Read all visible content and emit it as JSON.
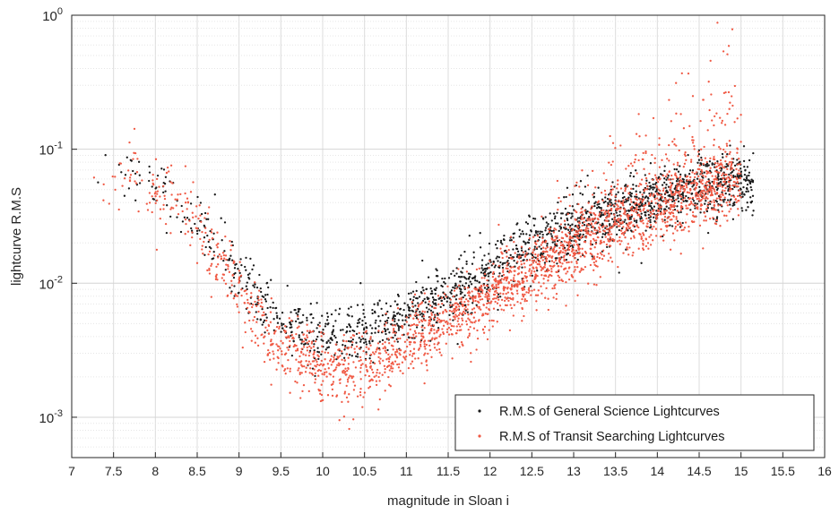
{
  "chart_data": {
    "type": "scatter",
    "title": "",
    "xlabel": "magnitude in Sloan i",
    "ylabel": "lightcurve R.M.S",
    "xlim": [
      7,
      16
    ],
    "ylim": [
      0.0005,
      1
    ],
    "yscale": "log",
    "grid": true,
    "minor_grid": true,
    "legend_position": "bottom-right",
    "x_ticks": [
      "7",
      "7.5",
      "8",
      "8.5",
      "9",
      "9.5",
      "10",
      "10.5",
      "11",
      "11.5",
      "12",
      "12.5",
      "13",
      "13.5",
      "14",
      "14.5",
      "15",
      "15.5",
      "16"
    ],
    "y_ticks": [
      {
        "base": "10",
        "exp": "0",
        "value": 1
      },
      {
        "base": "10",
        "exp": "-1",
        "value": 0.1
      },
      {
        "base": "10",
        "exp": "-2",
        "value": 0.01
      },
      {
        "base": "10",
        "exp": "-3",
        "value": 0.001
      }
    ],
    "series": [
      {
        "name": "R.M.S of General Science Lightcurves",
        "color": "#1a1a1a",
        "trend": {
          "x": [
            7.2,
            7.8,
            8.2,
            8.6,
            9.0,
            9.4,
            9.8,
            10.2,
            10.6,
            11.0,
            11.5,
            12.0,
            12.5,
            13.0,
            13.5,
            14.0,
            14.5,
            15.0,
            15.1
          ],
          "y": [
            0.055,
            0.065,
            0.045,
            0.024,
            0.011,
            0.0055,
            0.0044,
            0.0042,
            0.0046,
            0.0058,
            0.0085,
            0.013,
            0.019,
            0.026,
            0.034,
            0.043,
            0.052,
            0.06,
            0.055
          ]
        }
      },
      {
        "name": "R.M.S of Transit Searching Lightcurves",
        "color": "#f05a45",
        "trend": {
          "x": [
            7.2,
            7.8,
            8.2,
            8.6,
            9.0,
            9.4,
            9.8,
            10.2,
            10.6,
            11.0,
            11.5,
            12.0,
            12.5,
            13.0,
            13.5,
            14.0,
            14.5,
            15.0
          ],
          "y": [
            0.052,
            0.06,
            0.042,
            0.022,
            0.0085,
            0.0038,
            0.0028,
            0.0022,
            0.0025,
            0.0034,
            0.0052,
            0.0082,
            0.012,
            0.018,
            0.025,
            0.034,
            0.045,
            0.058
          ]
        }
      }
    ]
  }
}
